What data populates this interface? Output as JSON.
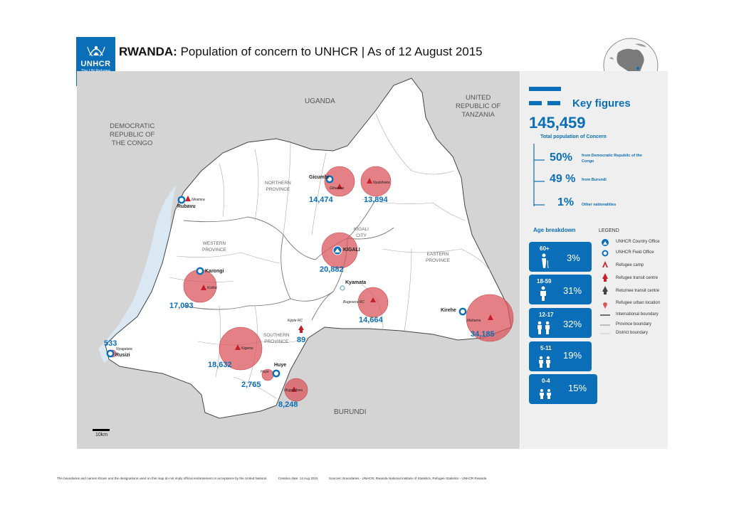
{
  "header": {
    "logo_name": "UNHCR",
    "logo_tagline": "The UN Refugee Agency",
    "title_bold": "RWANDA:",
    "title_rest": "Population of concern to UNHCR",
    "title_date": "As of 12 August 2015"
  },
  "countries": {
    "drc": [
      "DEMOCRATIC",
      "REPUBLIC OF",
      "THE CONGO"
    ],
    "uganda": "UGANDA",
    "tanzania": [
      "UNITED",
      "REPUBLIC OF",
      "TANZANIA"
    ],
    "burundi": "BURUNDI"
  },
  "provinces": {
    "northern": [
      "NORTHERN",
      "PROVINCE"
    ],
    "western": [
      "WESTERN",
      "PROVINCE"
    ],
    "kigali_city": [
      "KIGALI",
      "CITY"
    ],
    "eastern": [
      "EASTERN",
      "PROVINCE"
    ],
    "southern": [
      "SOUTHERN",
      "PROVINCE"
    ]
  },
  "offices": {
    "gicumbi": "Gicumbi",
    "rubavu": "Rubavu",
    "karongi": "Karongi",
    "kigali": "KIGALI",
    "kyamata": "Kyamata",
    "kirehe": "Kirehe",
    "huye": "Huye",
    "rusizi": "Rusizi"
  },
  "sites": {
    "gihembe": {
      "name": "Gihembe",
      "population": "14,474"
    },
    "nyabiheke": {
      "name": "Nyabiheke",
      "population": "13,894"
    },
    "nkamira": {
      "name": "Nkamira"
    },
    "kigali_urban": {
      "population": "20,882"
    },
    "kiziba": {
      "name": "Kiziba",
      "population": "17,093"
    },
    "bugesera": {
      "name": "Bugesera RC",
      "population": "14,664"
    },
    "mahama": {
      "name": "Mahama",
      "population": "34,185"
    },
    "kigeme": {
      "name": "Kigeme",
      "population": "18,632"
    },
    "kijote": {
      "name": "Kijote RC",
      "population": "89"
    },
    "huye_urban": {
      "name": "Huye",
      "population": "2,765"
    },
    "mugombwa": {
      "name": "Mugombwa",
      "population": "8,248"
    },
    "nyagatare": {
      "name": "Nyagatare",
      "population": "533"
    }
  },
  "scale": {
    "label": "10km"
  },
  "key_figures": {
    "heading": "Key figures",
    "total": "145,459",
    "total_label": "Total population of Concern",
    "items": [
      {
        "pct": "50%",
        "label": "from Democratic Republic of the Congo"
      },
      {
        "pct": "49 %",
        "label": "from Burundi"
      },
      {
        "pct": "1%",
        "label": "Other nationalities"
      }
    ]
  },
  "age": {
    "heading": "Age breakdown",
    "groups": [
      {
        "range": "60+",
        "pct": "3%"
      },
      {
        "range": "18-59",
        "pct": "31%"
      },
      {
        "range": "12-17",
        "pct": "32%"
      },
      {
        "range": "5-11",
        "pct": "19%"
      },
      {
        "range": "0-4",
        "pct": "15%"
      }
    ]
  },
  "legend": {
    "heading": "LEGEND",
    "items": [
      {
        "icon": "country-office-icon",
        "label": "UNHCR Country Office"
      },
      {
        "icon": "field-office-icon",
        "label": "UNHCR Field Office"
      },
      {
        "icon": "refugee-camp-icon",
        "label": "Refugee camp"
      },
      {
        "icon": "transit-centre-icon",
        "label": "Refugee transit centre"
      },
      {
        "icon": "returnee-centre-icon",
        "label": "Returnee transit centre"
      },
      {
        "icon": "urban-location-icon",
        "label": "Refugee urban location"
      },
      {
        "icon": "international-boundary-icon",
        "label": "International boundary"
      },
      {
        "icon": "province-boundary-icon",
        "label": "Province boundary"
      },
      {
        "icon": "district-boundary-icon",
        "label": "District boundary"
      }
    ]
  },
  "colors": {
    "unhcr_blue": "#0b6eb8",
    "circle_red": "#d9575d",
    "camp_red": "#c81e2a"
  },
  "footer": {
    "disclaimer": "The boundaries and names shown and the designations used on this map do not imply official endorsement or acceptance by the United Nations.",
    "creation": "Creation date: 14 Aug 2015",
    "sources": "Sources: Boundaries - UNHCR, Rwanda National Institute of Statistics, Refugee Statistics - UNHCR Rwanda"
  }
}
